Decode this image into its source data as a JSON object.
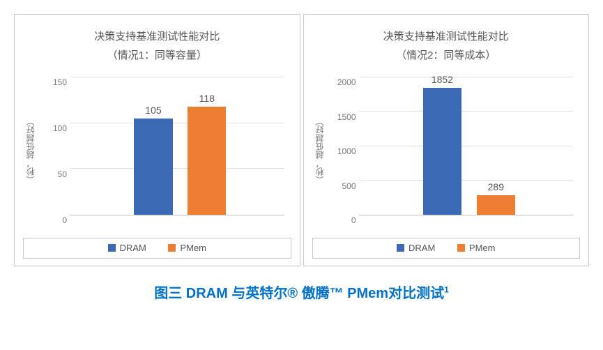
{
  "caption": {
    "prefix": "图三 ",
    "text": "DRAM 与英特尔® 傲腾™ PMem对比测试",
    "sup": "1",
    "color": "#0071c5",
    "fontsize": 20
  },
  "panel_border_color": "#c8c8c8",
  "grid_color": "#e0e0e0",
  "axis_color": "#bfbfbf",
  "text_color": "#555555",
  "tick_color": "#777777",
  "background_color": "#ffffff",
  "legend": {
    "items": [
      {
        "label": "DRAM",
        "color": "#3c69b4"
      },
      {
        "label": "PMem",
        "color": "#ed7d31"
      }
    ]
  },
  "charts": [
    {
      "title_line1": "决策支持基准测试性能对比",
      "title_line2": "（情况1：同等容量）",
      "ylabel": "（秒，越低越好）",
      "type": "bar",
      "ylim": [
        0,
        150
      ],
      "yticks": [
        0,
        50,
        100,
        150
      ],
      "bar_width_pct": 18,
      "bar_positions_pct": [
        30,
        55
      ],
      "series": [
        {
          "name": "DRAM",
          "value": 105,
          "color": "#3c69b4"
        },
        {
          "name": "PMem",
          "value": 118,
          "color": "#ed7d31"
        }
      ],
      "label_fontsize": 14,
      "tick_fontsize": 12,
      "title_fontsize": 15
    },
    {
      "title_line1": "决策支持基准测试性能对比",
      "title_line2": "（情况2：同等成本）",
      "ylabel": "（秒，越低越好）",
      "type": "bar",
      "ylim": [
        0,
        2000
      ],
      "yticks": [
        0,
        500,
        1000,
        1500,
        2000
      ],
      "bar_width_pct": 18,
      "bar_positions_pct": [
        30,
        55
      ],
      "series": [
        {
          "name": "DRAM",
          "value": 1852,
          "color": "#3c69b4"
        },
        {
          "name": "PMem",
          "value": 289,
          "color": "#ed7d31"
        }
      ],
      "label_fontsize": 14,
      "tick_fontsize": 12,
      "title_fontsize": 15
    }
  ]
}
